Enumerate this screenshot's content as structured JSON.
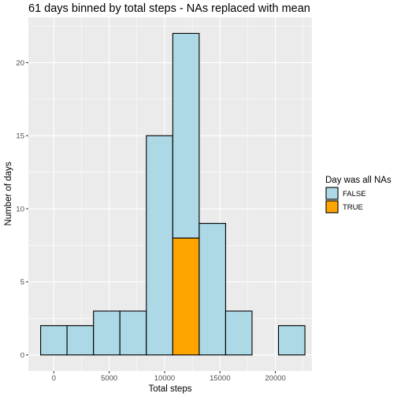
{
  "chart_data": {
    "type": "bar",
    "title": "61 days binned by total steps - NAs replaced with mean",
    "xlabel": "Total steps",
    "ylabel": "Number of days",
    "xlim": [
      -2300,
      23300
    ],
    "ylim": [
      -1.1,
      23.1
    ],
    "x_ticks": [
      0,
      5000,
      10000,
      15000,
      20000
    ],
    "y_ticks": [
      0,
      5,
      10,
      15,
      20
    ],
    "grid": true,
    "legend_position": "right",
    "legend_title": "Day was all NAs",
    "bin_edges": [
      -1193,
      1193,
      3579,
      5965,
      8351,
      10737,
      13123,
      15509,
      17895,
      20281,
      22667
    ],
    "series": [
      {
        "name": "FALSE",
        "color": "#add8e6",
        "values": [
          2,
          2,
          3,
          3,
          15,
          14,
          9,
          3,
          0,
          2
        ]
      },
      {
        "name": "TRUE",
        "color": "#ffa500",
        "values": [
          0,
          0,
          0,
          0,
          0,
          8,
          0,
          0,
          0,
          0
        ]
      }
    ],
    "panel_background": "#ebebeb",
    "grid_color": "#ffffff",
    "bar_outline": "#000000"
  }
}
